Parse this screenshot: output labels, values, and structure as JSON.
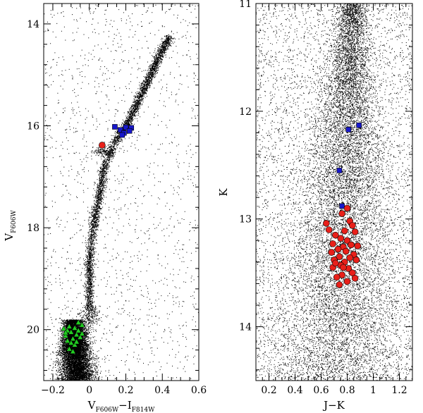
{
  "chart_data": [
    {
      "type": "scatter",
      "title": "",
      "xlabel": {
        "main1": "V",
        "sub1": "F606W",
        "mid": "−I",
        "sub2": "F814W"
      },
      "ylabel": {
        "main": "V",
        "sub": "F606W"
      },
      "xlim": [
        -0.25,
        0.6
      ],
      "ylim": [
        21.0,
        13.6
      ],
      "y_inverted": true,
      "xticks": [
        -0.2,
        0,
        0.2,
        0.4,
        0.6
      ],
      "xtick_labels": [
        "−0.2",
        "0",
        "0.2",
        "0.4",
        "0.6"
      ],
      "yticks": [
        14,
        16,
        18,
        20
      ],
      "ytick_labels": [
        "14",
        "16",
        "18",
        "20"
      ],
      "series": [
        {
          "marker": "dot",
          "color": "#000000",
          "points": [
            [
              -0.08,
              21.0
            ],
            [
              -0.05,
              20.0
            ],
            [
              -0.1,
              20.2
            ],
            [
              -0.12,
              20.5
            ],
            [
              0.0,
              19.8
            ],
            [
              0.0,
              19.45
            ],
            [
              0.0,
              19.0
            ],
            [
              0.0,
              18.6
            ],
            [
              0.02,
              18.0
            ],
            [
              0.04,
              17.6
            ],
            [
              0.06,
              17.2
            ],
            [
              0.08,
              16.8
            ],
            [
              0.14,
              16.3
            ],
            [
              0.2,
              16.0
            ],
            [
              0.24,
              15.7
            ],
            [
              0.28,
              15.4
            ],
            [
              0.32,
              15.1
            ],
            [
              0.36,
              14.8
            ],
            [
              0.4,
              14.5
            ],
            [
              0.44,
              14.25
            ],
            [
              0.08,
              16.5
            ]
          ]
        },
        {
          "marker": "square",
          "color": "#1818cc",
          "points": [
            [
              0.14,
              16.02
            ],
            [
              0.17,
              16.08
            ],
            [
              0.2,
              16.03
            ],
            [
              0.23,
              16.04
            ],
            [
              0.22,
              16.1
            ],
            [
              0.19,
              16.14
            ],
            [
              0.18,
              16.18
            ]
          ]
        },
        {
          "marker": "circle",
          "color": "#e8201a",
          "points": [
            [
              0.07,
              16.38
            ]
          ]
        },
        {
          "marker": "triangle",
          "color": "#22cc22",
          "points": [
            [
              -0.14,
              19.98
            ],
            [
              -0.12,
              20.02
            ],
            [
              -0.11,
              19.94
            ],
            [
              -0.1,
              20.05
            ],
            [
              -0.08,
              19.97
            ],
            [
              -0.07,
              20.1
            ],
            [
              -0.13,
              20.12
            ],
            [
              -0.09,
              20.18
            ],
            [
              -0.06,
              20.02
            ],
            [
              -0.04,
              19.91
            ],
            [
              -0.1,
              20.26
            ],
            [
              -0.12,
              20.22
            ],
            [
              -0.08,
              20.3
            ],
            [
              -0.06,
              19.86
            ],
            [
              -0.11,
              20.38
            ],
            [
              -0.09,
              20.43
            ],
            [
              -0.05,
              20.15
            ],
            [
              -0.13,
              20.06
            ],
            [
              -0.07,
              20.24
            ],
            [
              -0.04,
              20.08
            ]
          ]
        }
      ]
    },
    {
      "type": "scatter",
      "title": "",
      "xlabel": {
        "main": "J−K"
      },
      "ylabel": {
        "main": "K"
      },
      "xlim": [
        0.1,
        1.3
      ],
      "ylim": [
        14.5,
        11.0
      ],
      "y_inverted": true,
      "xticks": [
        0.2,
        0.4,
        0.6,
        0.8,
        1.0,
        1.2
      ],
      "xtick_labels": [
        "0.2",
        "0.4",
        "0.6",
        "0.8",
        "1",
        "1.2"
      ],
      "yticks": [
        11,
        12,
        13,
        14
      ],
      "ytick_labels": [
        "11",
        "12",
        "13",
        "14"
      ],
      "series": [
        {
          "marker": "dot",
          "color": "#000000",
          "points": [
            [
              0.7,
              14.5
            ],
            [
              0.72,
              14.0
            ],
            [
              0.74,
              13.5
            ],
            [
              0.76,
              13.0
            ],
            [
              0.78,
              12.5
            ],
            [
              0.8,
              12.0
            ],
            [
              0.82,
              11.5
            ],
            [
              0.85,
              11.0
            ],
            [
              0.45,
              13.5
            ],
            [
              0.55,
              12.5
            ]
          ]
        },
        {
          "marker": "square",
          "color": "#1818cc",
          "points": [
            [
              0.81,
              12.17
            ],
            [
              0.89,
              12.13
            ],
            [
              0.74,
              12.55
            ],
            [
              0.76,
              12.88
            ]
          ]
        },
        {
          "marker": "circle",
          "color": "#e8201a",
          "points": [
            [
              0.8,
              12.9
            ],
            [
              0.76,
              12.95
            ],
            [
              0.64,
              13.04
            ],
            [
              0.82,
              13.02
            ],
            [
              0.66,
              13.1
            ],
            [
              0.84,
              13.06
            ],
            [
              0.78,
              13.11
            ],
            [
              0.71,
              13.15
            ],
            [
              0.86,
              13.12
            ],
            [
              0.75,
              13.18
            ],
            [
              0.8,
              13.2
            ],
            [
              0.69,
              13.23
            ],
            [
              0.83,
              13.24
            ],
            [
              0.77,
              13.26
            ],
            [
              0.73,
              13.28
            ],
            [
              0.88,
              13.25
            ],
            [
              0.79,
              13.3
            ],
            [
              0.68,
              13.31
            ],
            [
              0.85,
              13.33
            ],
            [
              0.74,
              13.35
            ],
            [
              0.82,
              13.36
            ],
            [
              0.7,
              13.38
            ],
            [
              0.78,
              13.4
            ],
            [
              0.87,
              13.38
            ],
            [
              0.75,
              13.43
            ],
            [
              0.69,
              13.45
            ],
            [
              0.81,
              13.46
            ],
            [
              0.84,
              13.5
            ],
            [
              0.76,
              13.52
            ],
            [
              0.72,
              13.54
            ],
            [
              0.86,
              13.55
            ],
            [
              0.8,
              13.58
            ],
            [
              0.74,
              13.61
            ],
            [
              0.77,
              13.45
            ],
            [
              0.71,
              13.41
            ]
          ]
        }
      ]
    }
  ]
}
